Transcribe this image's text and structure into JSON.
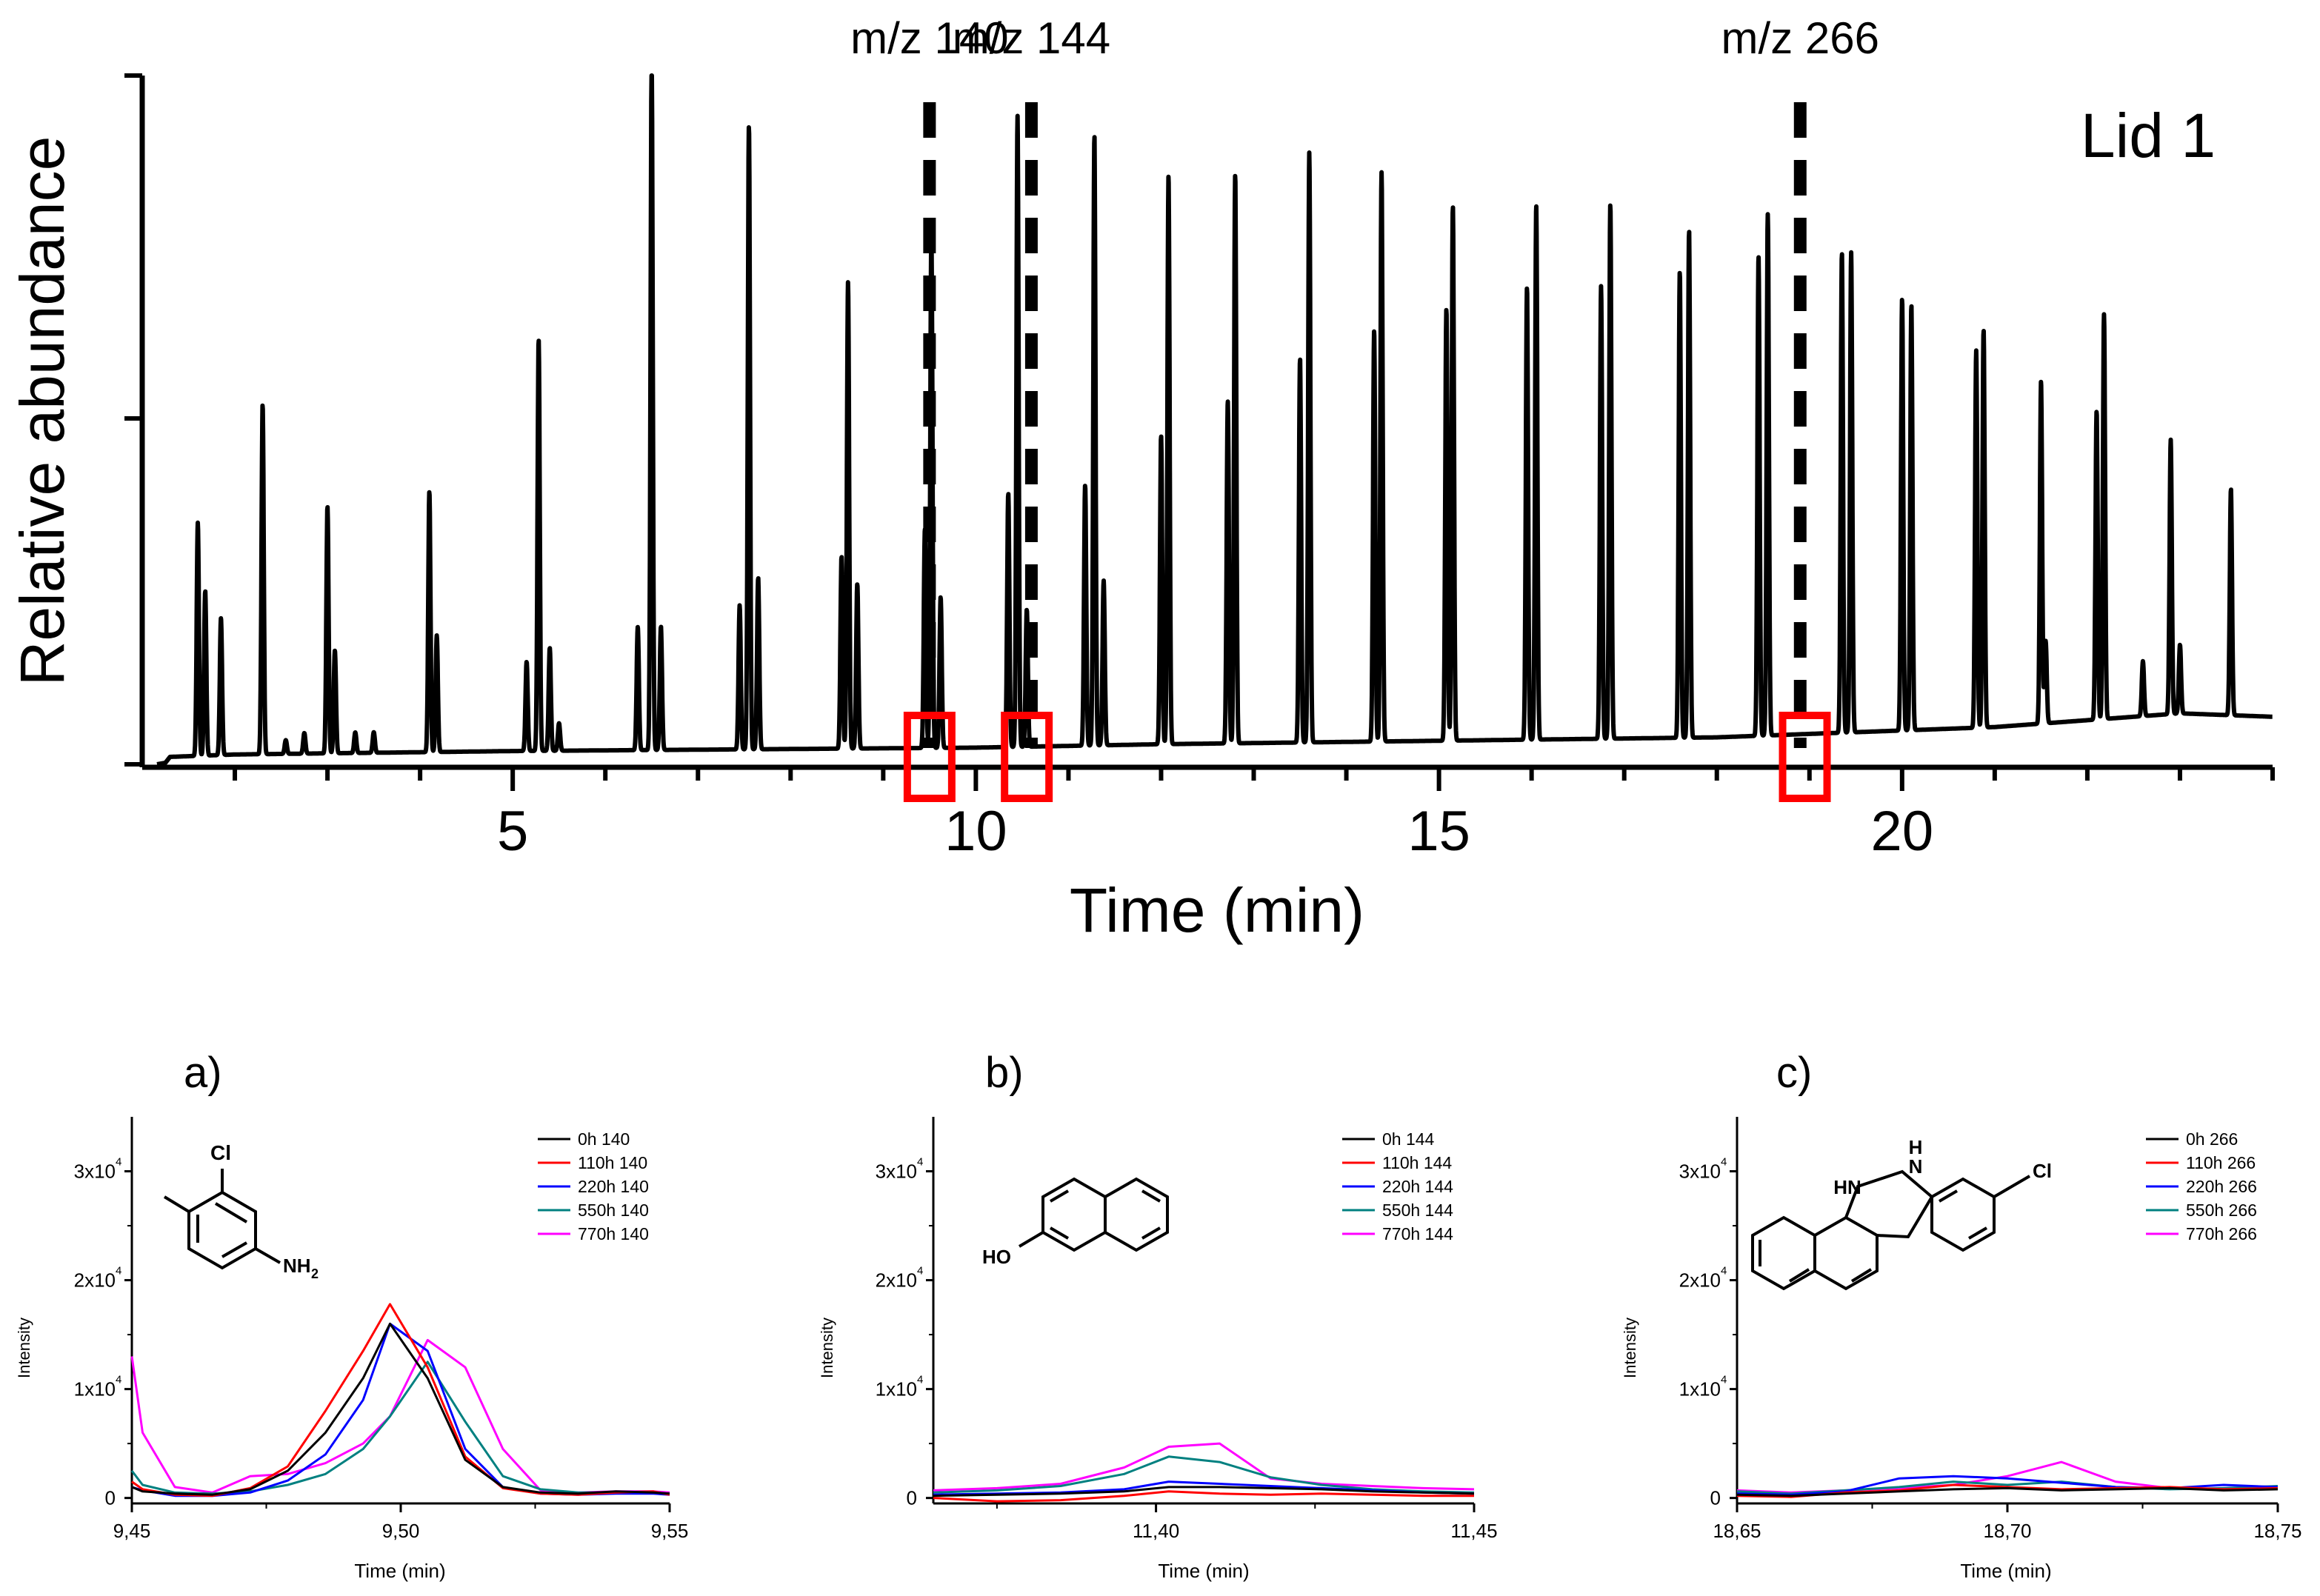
{
  "main_chart": {
    "title_label": "Lid 1",
    "ylabel": "Relative abundance",
    "xlabel": "Time (min)",
    "xlim": [
      1.0,
      24.0
    ],
    "xticks": [
      "5",
      "10",
      "15",
      "20"
    ],
    "markers": [
      {
        "label": "m/z 140",
        "x": 9.5
      },
      {
        "label": "m/z 144",
        "x": 10.6
      },
      {
        "label": "m/z 266",
        "x": 18.9
      }
    ],
    "highlight_boxes": [
      {
        "x": 9.5,
        "color": "#ff0000"
      },
      {
        "x": 10.55,
        "color": "#ff0000"
      },
      {
        "x": 18.95,
        "color": "#ff0000"
      }
    ]
  },
  "panels": [
    {
      "label": "a)",
      "ylabel": "Intensity",
      "xlabel": "Time (min)",
      "xticks": [
        "9,45",
        "9,50",
        "9,55"
      ],
      "yticks": [
        "0",
        "1x10",
        "2x10",
        "3x10"
      ],
      "ytick_exp": "4",
      "molecule": "chloro-methylaniline",
      "molecule_labels": [
        "Cl",
        "NH",
        "2"
      ],
      "legend": [
        "0h 140",
        "110h 140",
        "220h 140",
        "550h 140",
        "770h 140"
      ]
    },
    {
      "label": "b)",
      "ylabel": "Intensity",
      "xlabel": "Time (min)",
      "xticks": [
        "11,40",
        "11,45"
      ],
      "yticks": [
        "0",
        "1x10",
        "2x10",
        "3x10"
      ],
      "ytick_exp": "4",
      "molecule": "2-naphthol",
      "molecule_labels": [
        "HO"
      ],
      "legend": [
        "0h 144",
        "110h 144",
        "220h 144",
        "550h 144",
        "770h 144"
      ]
    },
    {
      "label": "c)",
      "ylabel": "Intensity",
      "xlabel": "Time (min)",
      "xticks": [
        "18,65",
        "18,70",
        "18,75"
      ],
      "yticks": [
        "0",
        "1x10",
        "2x10",
        "3x10"
      ],
      "ytick_exp": "4",
      "molecule": "chloro-benzocinnoline",
      "molecule_labels": [
        "H",
        "N",
        "HN",
        "Cl"
      ],
      "legend": [
        "0h 266",
        "110h 266",
        "220h 266",
        "550h 266",
        "770h 266"
      ]
    }
  ],
  "series_colors": [
    "#000000",
    "#ff0000",
    "#0000ff",
    "#008080",
    "#ff00ff"
  ],
  "chart_data": [
    {
      "type": "line",
      "title": "Lid 1",
      "xlabel": "Time (min)",
      "ylabel": "Relative abundance",
      "xlim": [
        1.0,
        24.0
      ],
      "ylim": [
        0,
        100
      ],
      "baseline": [
        [
          1.0,
          0.5
        ],
        [
          2.0,
          1.0
        ],
        [
          5.0,
          1.5
        ],
        [
          8.0,
          1.8
        ],
        [
          10.0,
          2.0
        ],
        [
          12.0,
          2.5
        ],
        [
          15.0,
          3.0
        ],
        [
          18.0,
          3.5
        ],
        [
          20.0,
          4.5
        ],
        [
          21.0,
          5.0
        ],
        [
          22.0,
          6.0
        ],
        [
          23.0,
          7.0
        ],
        [
          24.0,
          6.5
        ]
      ],
      "peaks": [
        {
          "t": 1.6,
          "h": 34
        },
        {
          "t": 1.68,
          "h": 24
        },
        {
          "t": 1.85,
          "h": 20
        },
        {
          "t": 2.3,
          "h": 51
        },
        {
          "t": 2.55,
          "h": 2
        },
        {
          "t": 2.75,
          "h": 3
        },
        {
          "t": 3.0,
          "h": 36
        },
        {
          "t": 3.08,
          "h": 15
        },
        {
          "t": 3.3,
          "h": 3
        },
        {
          "t": 3.5,
          "h": 3
        },
        {
          "t": 4.1,
          "h": 38
        },
        {
          "t": 4.18,
          "h": 17
        },
        {
          "t": 5.15,
          "h": 13
        },
        {
          "t": 5.28,
          "h": 60
        },
        {
          "t": 5.4,
          "h": 15
        },
        {
          "t": 5.5,
          "h": 4
        },
        {
          "t": 6.35,
          "h": 18
        },
        {
          "t": 6.5,
          "h": 100
        },
        {
          "t": 6.6,
          "h": 18
        },
        {
          "t": 7.45,
          "h": 21
        },
        {
          "t": 7.55,
          "h": 91
        },
        {
          "t": 7.65,
          "h": 25
        },
        {
          "t": 8.55,
          "h": 28
        },
        {
          "t": 8.62,
          "h": 68
        },
        {
          "t": 8.72,
          "h": 24
        },
        {
          "t": 9.45,
          "h": 32
        },
        {
          "t": 9.52,
          "h": 75
        },
        {
          "t": 9.62,
          "h": 22
        },
        {
          "t": 10.35,
          "h": 37
        },
        {
          "t": 10.45,
          "h": 92
        },
        {
          "t": 10.55,
          "h": 20
        },
        {
          "t": 11.18,
          "h": 38
        },
        {
          "t": 11.28,
          "h": 89
        },
        {
          "t": 11.38,
          "h": 24
        },
        {
          "t": 12.0,
          "h": 45
        },
        {
          "t": 12.08,
          "h": 83
        },
        {
          "t": 12.72,
          "h": 50
        },
        {
          "t": 12.8,
          "h": 83
        },
        {
          "t": 13.5,
          "h": 56
        },
        {
          "t": 13.6,
          "h": 86
        },
        {
          "t": 14.3,
          "h": 60
        },
        {
          "t": 14.38,
          "h": 83
        },
        {
          "t": 15.08,
          "h": 63
        },
        {
          "t": 15.15,
          "h": 78
        },
        {
          "t": 15.95,
          "h": 66
        },
        {
          "t": 16.05,
          "h": 78
        },
        {
          "t": 16.75,
          "h": 66
        },
        {
          "t": 16.85,
          "h": 78
        },
        {
          "t": 17.6,
          "h": 68
        },
        {
          "t": 17.7,
          "h": 74
        },
        {
          "t": 18.45,
          "h": 70
        },
        {
          "t": 18.55,
          "h": 76
        },
        {
          "t": 19.35,
          "h": 70
        },
        {
          "t": 19.45,
          "h": 70
        },
        {
          "t": 20.0,
          "h": 63
        },
        {
          "t": 20.1,
          "h": 62
        },
        {
          "t": 20.8,
          "h": 55
        },
        {
          "t": 20.88,
          "h": 58
        },
        {
          "t": 21.5,
          "h": 50
        },
        {
          "t": 21.55,
          "h": 12
        },
        {
          "t": 22.1,
          "h": 45
        },
        {
          "t": 22.18,
          "h": 59
        },
        {
          "t": 22.6,
          "h": 8
        },
        {
          "t": 22.9,
          "h": 40
        },
        {
          "t": 23.0,
          "h": 10
        },
        {
          "t": 23.55,
          "h": 33
        }
      ]
    },
    {
      "type": "line",
      "title": "a)",
      "xlabel": "Time (min)",
      "ylabel": "Intensity",
      "xlim": [
        9.45,
        9.55
      ],
      "ylim": [
        -500,
        35000
      ],
      "x": [
        9.45,
        9.452,
        9.458,
        9.465,
        9.472,
        9.479,
        9.486,
        9.493,
        9.498,
        9.505,
        9.512,
        9.519,
        9.526,
        9.533,
        9.54,
        9.547,
        9.55
      ],
      "series": [
        {
          "name": "0h 140",
          "values": [
            1000,
            600,
            400,
            300,
            800,
            2500,
            6000,
            11000,
            16000,
            11000,
            3500,
            1000,
            500,
            400,
            600,
            500,
            400
          ]
        },
        {
          "name": "110h 140",
          "values": [
            1500,
            800,
            300,
            200,
            900,
            2900,
            8000,
            13500,
            17800,
            12000,
            3800,
            900,
            400,
            300,
            500,
            600,
            300
          ]
        },
        {
          "name": "220h 140",
          "values": [
            1000,
            700,
            200,
            200,
            500,
            1600,
            4000,
            9000,
            16000,
            13500,
            4500,
            1000,
            400,
            300,
            400,
            400,
            300
          ]
        },
        {
          "name": "550h 140",
          "values": [
            2500,
            1200,
            500,
            400,
            600,
            1200,
            2200,
            4500,
            7500,
            12500,
            7000,
            2000,
            800,
            500,
            500,
            500,
            400
          ]
        },
        {
          "name": "770h 140",
          "values": [
            13000,
            6000,
            1000,
            500,
            2000,
            2200,
            3200,
            5000,
            7500,
            14500,
            12000,
            4500,
            700,
            500,
            600,
            600,
            500
          ]
        }
      ]
    },
    {
      "type": "line",
      "title": "b)",
      "xlabel": "Time (min)",
      "ylabel": "Intensity",
      "xlim": [
        11.365,
        11.45
      ],
      "ylim": [
        -500,
        35000
      ],
      "x": [
        11.365,
        11.375,
        11.385,
        11.395,
        11.402,
        11.41,
        11.418,
        11.426,
        11.434,
        11.442,
        11.45
      ],
      "series": [
        {
          "name": "0h 144",
          "values": [
            200,
            300,
            400,
            600,
            1000,
            1000,
            900,
            800,
            600,
            500,
            400
          ]
        },
        {
          "name": "110h 144",
          "values": [
            0,
            -300,
            -200,
            200,
            600,
            400,
            300,
            400,
            300,
            200,
            200
          ]
        },
        {
          "name": "220h 144",
          "values": [
            300,
            400,
            500,
            800,
            1500,
            1300,
            1100,
            900,
            700,
            500,
            400
          ]
        },
        {
          "name": "550h 144",
          "values": [
            500,
            700,
            1100,
            2200,
            3800,
            3300,
            1900,
            1200,
            800,
            600,
            500
          ]
        },
        {
          "name": "770h 144",
          "values": [
            700,
            900,
            1300,
            2800,
            4700,
            5000,
            1800,
            1300,
            1100,
            900,
            800
          ]
        }
      ]
    },
    {
      "type": "line",
      "title": "c)",
      "xlabel": "Time (min)",
      "ylabel": "Intensity",
      "xlim": [
        18.65,
        18.75
      ],
      "ylim": [
        -500,
        35000
      ],
      "x": [
        18.65,
        18.66,
        18.67,
        18.68,
        18.69,
        18.7,
        18.71,
        18.72,
        18.73,
        18.74,
        18.75
      ],
      "series": [
        {
          "name": "0h 266",
          "values": [
            300,
            200,
            400,
            600,
            800,
            900,
            700,
            800,
            900,
            700,
            800
          ]
        },
        {
          "name": "110h 266",
          "values": [
            200,
            100,
            500,
            700,
            1200,
            1000,
            800,
            900,
            1000,
            800,
            900
          ]
        },
        {
          "name": "220h 266",
          "values": [
            400,
            300,
            600,
            1800,
            2000,
            1800,
            1400,
            1000,
            900,
            1200,
            1000
          ]
        },
        {
          "name": "550h 266",
          "values": [
            600,
            400,
            700,
            1000,
            1500,
            1200,
            1500,
            1000,
            800,
            900,
            1100
          ]
        },
        {
          "name": "770h 266",
          "values": [
            700,
            500,
            700,
            900,
            1200,
            2000,
            3300,
            1500,
            900,
            800,
            900
          ]
        }
      ]
    }
  ]
}
